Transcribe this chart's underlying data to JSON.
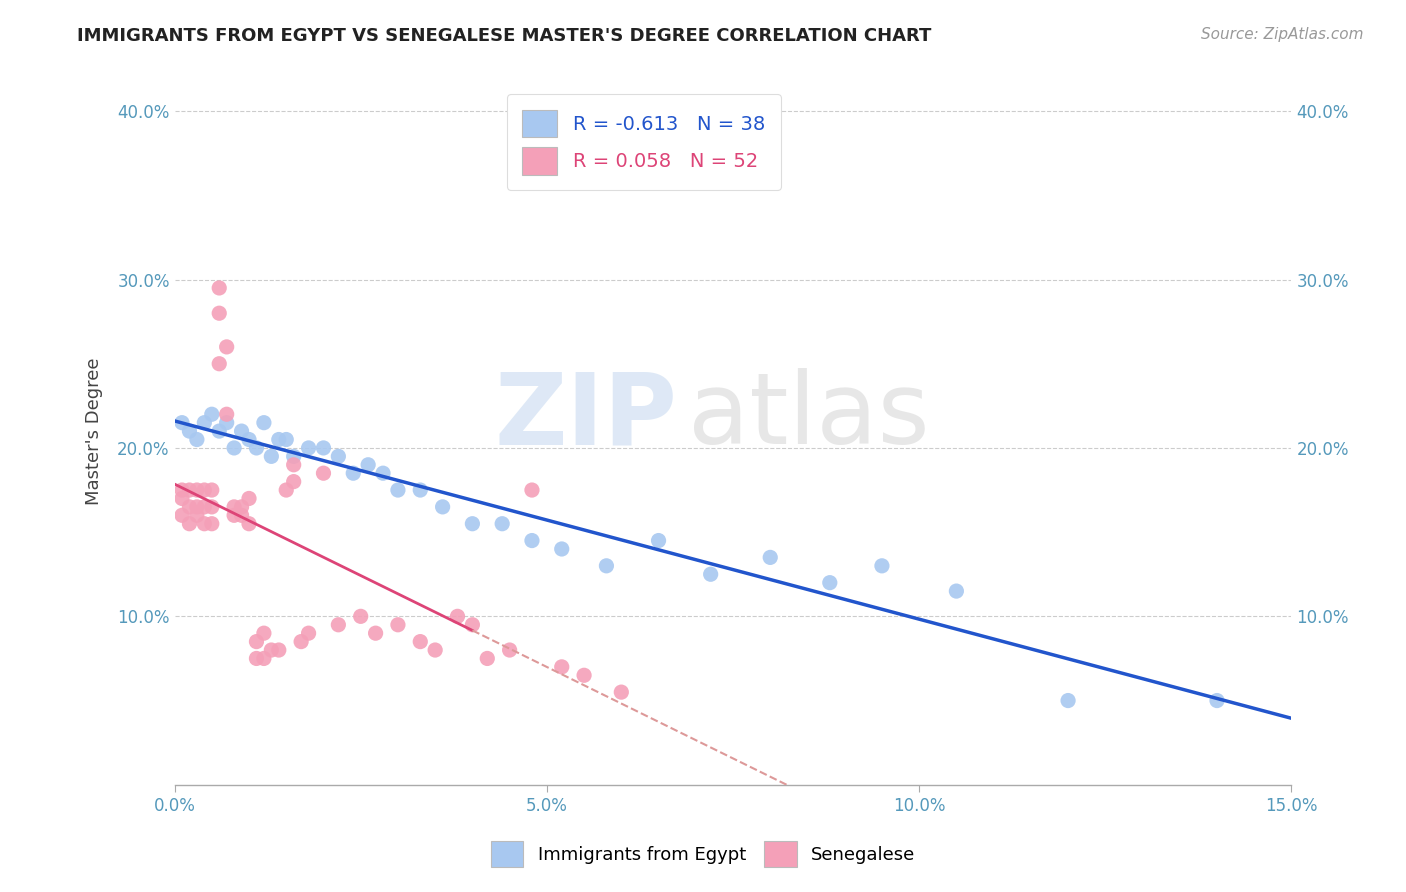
{
  "title": "IMMIGRANTS FROM EGYPT VS SENEGALESE MASTER'S DEGREE CORRELATION CHART",
  "source": "Source: ZipAtlas.com",
  "ylabel": "Master's Degree",
  "xlim": [
    0.0,
    0.15
  ],
  "ylim": [
    0.0,
    0.42
  ],
  "xticks": [
    0.0,
    0.05,
    0.1,
    0.15
  ],
  "xtick_labels": [
    "0.0%",
    "5.0%",
    "10.0%",
    "15.0%"
  ],
  "yticks": [
    0.1,
    0.2,
    0.3,
    0.4
  ],
  "ytick_labels": [
    "10.0%",
    "20.0%",
    "30.0%",
    "40.0%"
  ],
  "legend_r1": "R = -0.613",
  "legend_n1": "N = 38",
  "legend_r2": "R = 0.058",
  "legend_n2": "N = 52",
  "blue_color": "#a8c8f0",
  "pink_color": "#f4a0b8",
  "blue_line_color": "#2255cc",
  "pink_line_color": "#dd4477",
  "pink_line_dash_color": "#dd9999",
  "watermark_zip": "ZIP",
  "watermark_atlas": "atlas",
  "blue_scatter_x": [
    0.001,
    0.002,
    0.003,
    0.004,
    0.005,
    0.006,
    0.007,
    0.008,
    0.009,
    0.01,
    0.011,
    0.012,
    0.013,
    0.014,
    0.015,
    0.016,
    0.018,
    0.02,
    0.022,
    0.024,
    0.026,
    0.028,
    0.03,
    0.033,
    0.036,
    0.04,
    0.044,
    0.048,
    0.052,
    0.058,
    0.065,
    0.072,
    0.08,
    0.088,
    0.095,
    0.105,
    0.12,
    0.14
  ],
  "blue_scatter_y": [
    0.215,
    0.21,
    0.205,
    0.215,
    0.22,
    0.21,
    0.215,
    0.2,
    0.21,
    0.205,
    0.2,
    0.215,
    0.195,
    0.205,
    0.205,
    0.195,
    0.2,
    0.2,
    0.195,
    0.185,
    0.19,
    0.185,
    0.175,
    0.175,
    0.165,
    0.155,
    0.155,
    0.145,
    0.14,
    0.13,
    0.145,
    0.125,
    0.135,
    0.12,
    0.13,
    0.115,
    0.05,
    0.05
  ],
  "pink_scatter_x": [
    0.001,
    0.001,
    0.001,
    0.002,
    0.002,
    0.002,
    0.003,
    0.003,
    0.003,
    0.004,
    0.004,
    0.004,
    0.005,
    0.005,
    0.005,
    0.006,
    0.006,
    0.006,
    0.007,
    0.007,
    0.008,
    0.008,
    0.009,
    0.009,
    0.01,
    0.01,
    0.011,
    0.011,
    0.012,
    0.012,
    0.013,
    0.014,
    0.015,
    0.016,
    0.016,
    0.017,
    0.018,
    0.02,
    0.022,
    0.025,
    0.027,
    0.03,
    0.033,
    0.035,
    0.038,
    0.04,
    0.042,
    0.045,
    0.048,
    0.052,
    0.055,
    0.06
  ],
  "pink_scatter_y": [
    0.16,
    0.17,
    0.175,
    0.155,
    0.165,
    0.175,
    0.16,
    0.165,
    0.175,
    0.155,
    0.165,
    0.175,
    0.155,
    0.165,
    0.175,
    0.25,
    0.28,
    0.295,
    0.22,
    0.26,
    0.16,
    0.165,
    0.16,
    0.165,
    0.155,
    0.17,
    0.075,
    0.085,
    0.09,
    0.075,
    0.08,
    0.08,
    0.175,
    0.18,
    0.19,
    0.085,
    0.09,
    0.185,
    0.095,
    0.1,
    0.09,
    0.095,
    0.085,
    0.08,
    0.1,
    0.095,
    0.075,
    0.08,
    0.175,
    0.07,
    0.065,
    0.055
  ]
}
